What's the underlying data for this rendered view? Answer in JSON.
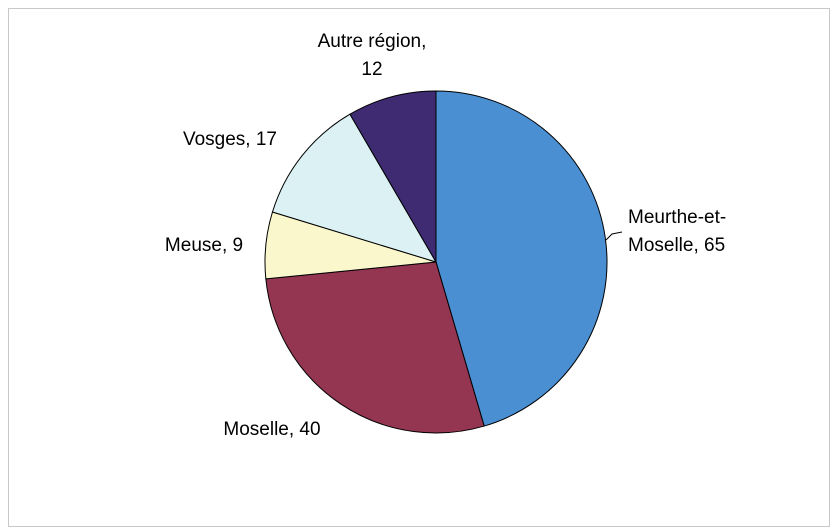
{
  "chart_data": {
    "type": "pie",
    "categories": [
      "Meurthe-et-Moselle",
      "Moselle",
      "Meuse",
      "Vosges",
      "Autre région"
    ],
    "values": [
      65,
      40,
      9,
      17,
      12
    ],
    "value_labels": [
      [
        "Meurthe-et-",
        "Moselle, 65"
      ],
      [
        "Moselle, 40"
      ],
      [
        "Meuse, 9"
      ],
      [
        "Vosges, 17"
      ],
      [
        "Autre région,",
        "12"
      ]
    ],
    "colors": [
      "#4a8fd2",
      "#943552",
      "#fbf7cc",
      "#dbf1f4",
      "#3e2b72"
    ]
  }
}
